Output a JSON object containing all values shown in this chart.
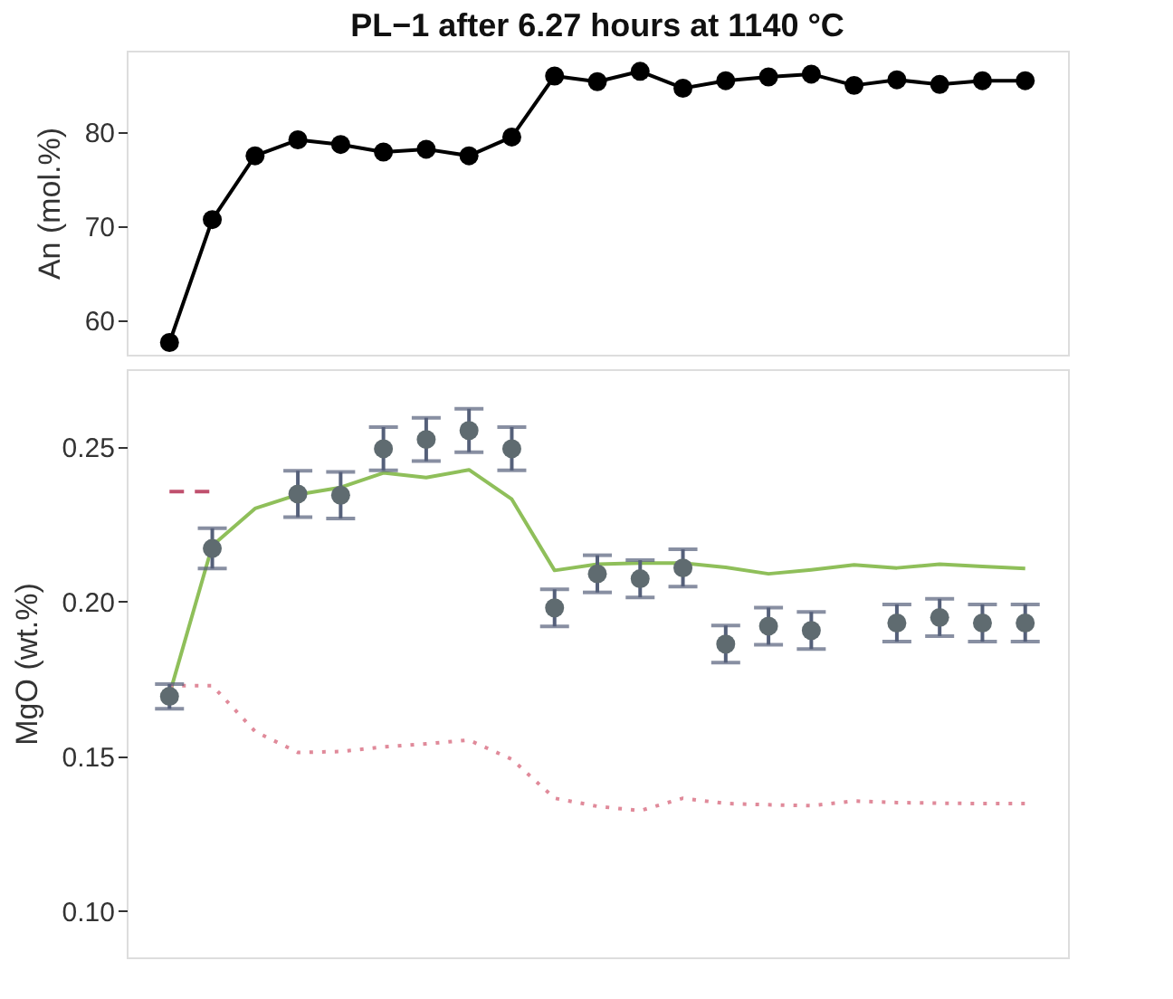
{
  "chart_data": [
    {
      "type": "line",
      "title": "PL−1 after 6.27 hours at 1140 °C",
      "ylabel": "An (mol.%)",
      "categories": [
        null,
        null,
        null,
        null,
        null,
        null,
        null,
        null,
        null,
        null,
        null,
        null,
        null,
        null,
        null,
        null,
        null,
        null,
        null,
        null,
        null
      ],
      "ylim": [
        56.3,
        88.7
      ],
      "yticks": [
        60,
        70,
        80
      ],
      "tick_labels": "y",
      "grid": false,
      "marker": "circle",
      "line_style": "solid",
      "series": [
        {
          "color": "#000000",
          "values": [
            57.6,
            70.7,
            77.5,
            79.2,
            78.7,
            77.9,
            78.2,
            77.5,
            79.5,
            86.0,
            85.4,
            86.5,
            84.7,
            85.5,
            85.9,
            86.2,
            85.0,
            85.6,
            85.1,
            85.5,
            85.5
          ]
        }
      ]
    },
    {
      "type": "scatter",
      "ylabel": "MgO (wt.%)",
      "categories": [
        null,
        null,
        null,
        null,
        null,
        null,
        null,
        null,
        null,
        null,
        null,
        null,
        null,
        null,
        null,
        null,
        null,
        null,
        null,
        null,
        null
      ],
      "ylim": [
        0.085,
        0.275
      ],
      "yticks": [
        {
          "value": 0.1,
          "label": "0.10"
        },
        0.15,
        {
          "value": 0.2,
          "label": "0.20"
        },
        0.25
      ],
      "tick_labels": "y",
      "grid": false,
      "series": [
        {
          "type": "line",
          "color": "#8fbf5a",
          "line_style": "solid",
          "marker": "none",
          "values": [
            0.17,
            0.218,
            0.23,
            0.2345,
            0.2368,
            0.2415,
            0.24,
            0.2425,
            0.233,
            0.21,
            0.212,
            0.2124,
            0.2124,
            0.211,
            0.2089,
            0.2102,
            0.2118,
            0.2108,
            0.212,
            0.2113,
            0.2106
          ]
        },
        {
          "type": "line",
          "color": "#e08a9a",
          "line_style": "dotted",
          "marker": "none",
          "values": [
            0.1728,
            0.1728,
            0.158,
            0.1512,
            0.1515,
            0.153,
            0.154,
            0.1552,
            0.149,
            0.1364,
            0.1338,
            0.1324,
            0.1364,
            0.1347,
            0.1343,
            0.134,
            0.1355,
            0.135,
            0.1348,
            0.1347,
            0.1347
          ]
        },
        {
          "type": "line",
          "color": "#c0506e",
          "line_style": "dashed",
          "marker": "none",
          "values": [
            0.2355,
            0.2355,
            null,
            null,
            null,
            null,
            null,
            null,
            null,
            null,
            null,
            null,
            null,
            null,
            null,
            null,
            null,
            null,
            null,
            null,
            null
          ]
        },
        {
          "type": "scatter",
          "color": "#5f6b70",
          "marker": "circle",
          "values": [
            0.1693,
            0.2171,
            null,
            0.2347,
            0.2343,
            0.2493,
            0.2523,
            0.2552,
            0.2493,
            0.1979,
            0.2089,
            0.2073,
            0.2108,
            0.1862,
            0.192,
            0.1906,
            null,
            0.193,
            0.1948,
            0.193,
            0.193
          ],
          "errors": [
            0.004,
            0.0065,
            null,
            0.0075,
            0.0075,
            0.007,
            0.007,
            0.007,
            0.007,
            0.006,
            0.006,
            0.006,
            0.006,
            0.006,
            0.006,
            0.006,
            null,
            0.006,
            0.006,
            0.006,
            0.006
          ]
        }
      ]
    }
  ]
}
